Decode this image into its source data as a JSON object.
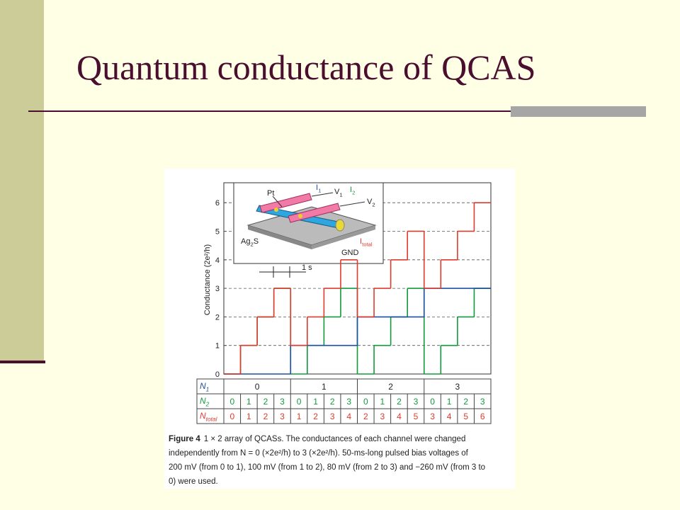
{
  "title": "Quantum conductance of  QCAS",
  "chart_data": {
    "type": "step",
    "y_label": "Conductance (2e²/h)",
    "ylim": [
      0,
      6.6
    ],
    "yticks": [
      0,
      1,
      2,
      3,
      4,
      5,
      6
    ],
    "grid": true,
    "series": [
      {
        "name": {
          "text": "N",
          "sub": "1"
        },
        "color": "#1f4fa0",
        "values": [
          0,
          1,
          2,
          3
        ]
      },
      {
        "name": {
          "text": "N",
          "sub": "2"
        },
        "color": "#119a3c",
        "values": [
          0,
          1,
          2,
          3,
          0,
          1,
          2,
          3,
          0,
          1,
          2,
          3,
          0,
          1,
          2,
          3
        ]
      },
      {
        "name": {
          "text": "N",
          "sub": "total"
        },
        "color": "#e03a2e",
        "values": [
          0,
          1,
          2,
          3,
          1,
          2,
          3,
          4,
          2,
          3,
          4,
          5,
          3,
          4,
          5,
          6
        ]
      }
    ],
    "annotations": {
      "pt": {
        "text": "Pt"
      },
      "i1": {
        "text": "I",
        "sub": "1"
      },
      "v1": {
        "text": "V",
        "sub": "1"
      },
      "i2": {
        "text": "I",
        "sub": "2"
      },
      "v2": {
        "text": "V",
        "sub": "2"
      },
      "ag2s": {
        "text": "Ag",
        "sub": "2",
        "tail": "S"
      },
      "gnd": {
        "text": "GND"
      },
      "itotal": {
        "text": "I",
        "sub": "total"
      },
      "time": {
        "text": "1 s"
      }
    },
    "caption": {
      "label": "Figure 4",
      "lines": [
        "1 × 2 array of QCASs. The conductances of each channel were changed",
        "independently from N = 0 (×2e²/h) to 3 (×2e²/h). 50-ms-long pulsed bias voltages of",
        "200 mV (from 0 to 1), 100 mV (from 1 to 2), 80 mV (from 2 to 3) and −260 mV (from 3 to",
        "0) were used."
      ]
    }
  }
}
